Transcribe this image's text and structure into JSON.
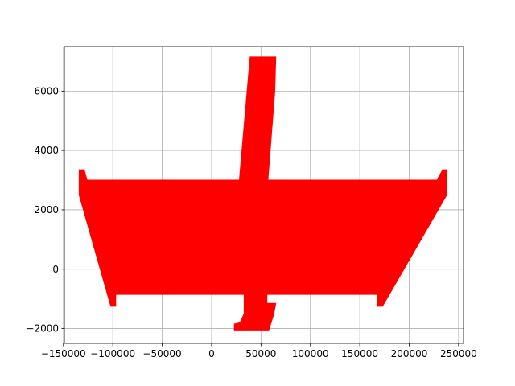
{
  "chart_data": {
    "type": "area",
    "title": "",
    "xlabel": "",
    "ylabel": "",
    "xlim": [
      -149000,
      255000
    ],
    "ylim": [
      -2500,
      7500
    ],
    "grid": true,
    "legend": "none",
    "fill_color": "#ff0000",
    "x_ticks": [
      -150000,
      -100000,
      -50000,
      0,
      50000,
      100000,
      150000,
      200000,
      250000
    ],
    "x_tick_labels": [
      "−150000",
      "−100000",
      "−50000",
      "0",
      "50000",
      "100000",
      "150000",
      "200000",
      "250000"
    ],
    "y_ticks": [
      -2000,
      0,
      2000,
      4000,
      6000
    ],
    "y_tick_labels": [
      "−2000",
      "0",
      "2000",
      "4000",
      "6000"
    ],
    "shapes": [
      {
        "name": "wing",
        "points": [
          [
            -134000,
            3350
          ],
          [
            -129000,
            3350
          ],
          [
            -126000,
            3000
          ],
          [
            228000,
            3000
          ],
          [
            234000,
            3350
          ],
          [
            238000,
            3350
          ],
          [
            238000,
            2500
          ],
          [
            173000,
            -1250
          ],
          [
            168000,
            -1250
          ],
          [
            168000,
            -850
          ],
          [
            -97000,
            -850
          ],
          [
            -97000,
            -1250
          ],
          [
            -102000,
            -1250
          ],
          [
            -134000,
            2500
          ]
        ]
      },
      {
        "name": "upper-stem",
        "points": [
          [
            39000,
            7150
          ],
          [
            65000,
            7150
          ],
          [
            64000,
            6000
          ],
          [
            57000,
            3000
          ],
          [
            55000,
            -100
          ],
          [
            27000,
            -100
          ],
          [
            28000,
            2950
          ]
        ]
      },
      {
        "name": "lower-stem",
        "points": [
          [
            33000,
            -850
          ],
          [
            56000,
            -850
          ],
          [
            56000,
            -1150
          ],
          [
            65000,
            -1150
          ],
          [
            63000,
            -1500
          ],
          [
            58000,
            -2050
          ],
          [
            23000,
            -2050
          ],
          [
            23000,
            -1850
          ],
          [
            29000,
            -1800
          ],
          [
            33000,
            -1500
          ]
        ]
      }
    ]
  }
}
